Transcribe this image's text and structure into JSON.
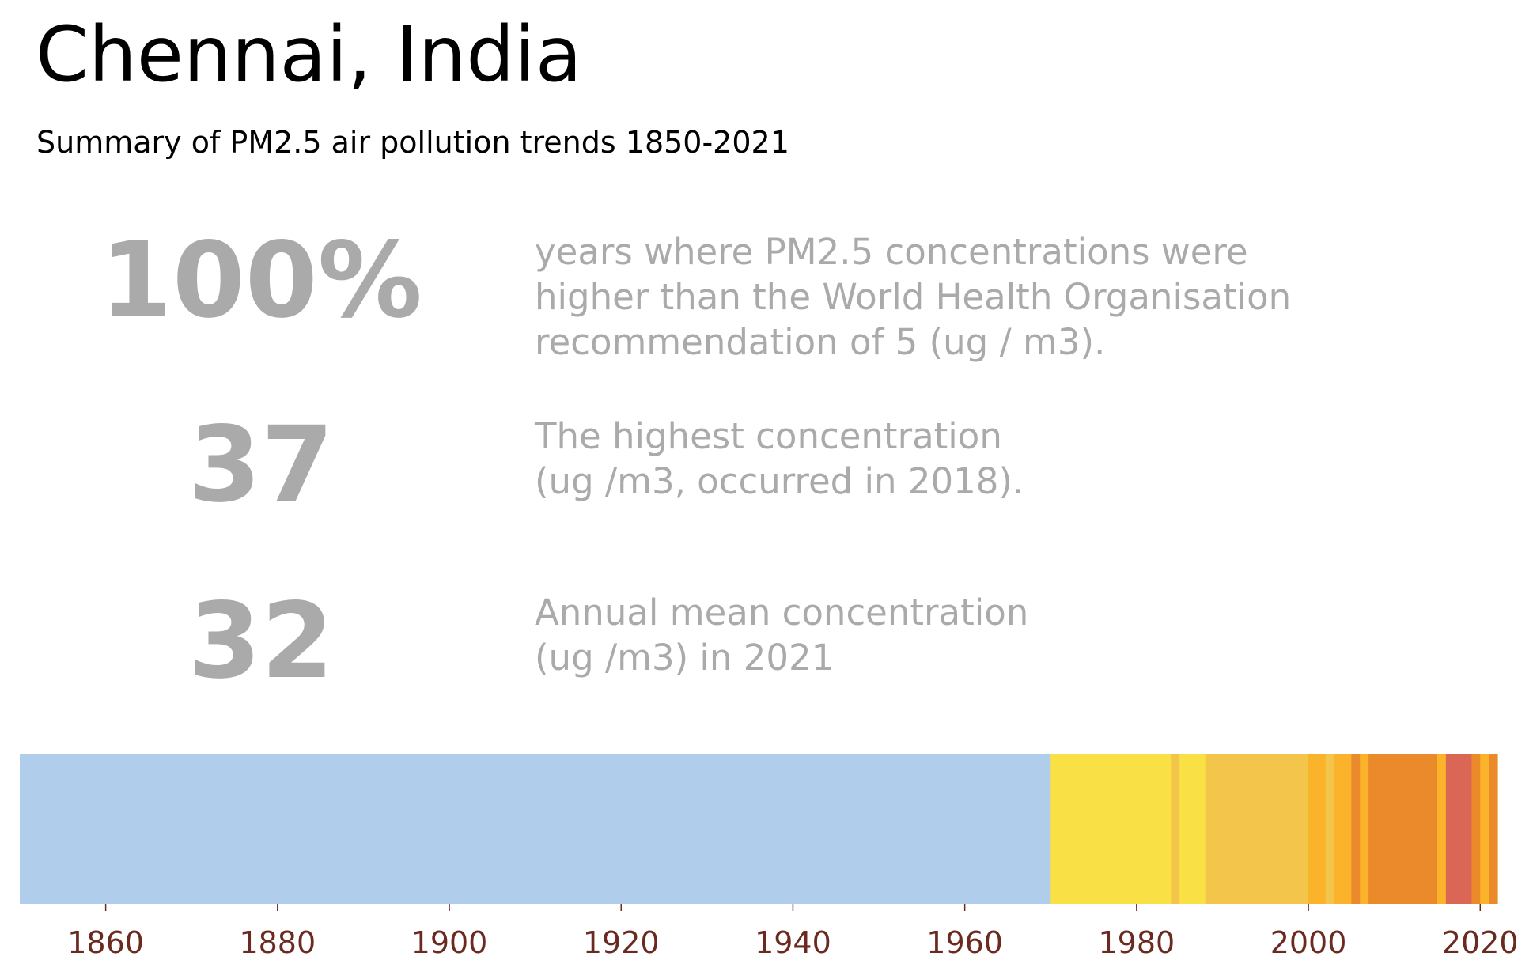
{
  "title": "Chennai, India",
  "subtitle": "Summary of PM2.5 air pollution trends 1850-2021",
  "stats": [
    {
      "value": "100%",
      "description": "years where PM2.5 concentrations were\nhigher than the World Health Organisation\nrecommendation of 5 (ug / m3)."
    },
    {
      "value": "37",
      "description": "The highest concentration\n(ug /m3, occurred in 2018)."
    },
    {
      "value": "32",
      "description": "Annual mean concentration\n(ug /m3) in 2021"
    }
  ],
  "colors": {
    "tick_label": "#6b2a1f",
    "no_data": "#b0ceec",
    "yellow": "#f8e045",
    "light_orange": "#f3c54b",
    "amber": "#fbb32c",
    "orange": "#ea8a2a",
    "red": "#da6655"
  },
  "chart_data": {
    "type": "heatmap",
    "x_range": [
      1850,
      2022
    ],
    "x_ticks": [
      1860,
      1880,
      1900,
      1920,
      1940,
      1960,
      1980,
      2000,
      2020
    ],
    "bands": [
      {
        "start": 1850,
        "end": 1970,
        "color": "#b0ceec"
      },
      {
        "start": 1970,
        "end": 1984,
        "color": "#f8e045"
      },
      {
        "start": 1984,
        "end": 1985,
        "color": "#f3c54b"
      },
      {
        "start": 1985,
        "end": 1988,
        "color": "#f8e045"
      },
      {
        "start": 1988,
        "end": 2000,
        "color": "#f3c54b"
      },
      {
        "start": 2000,
        "end": 2002,
        "color": "#fbb32c"
      },
      {
        "start": 2002,
        "end": 2003,
        "color": "#f3c54b"
      },
      {
        "start": 2003,
        "end": 2005,
        "color": "#fbb32c"
      },
      {
        "start": 2005,
        "end": 2006,
        "color": "#ea8a2a"
      },
      {
        "start": 2006,
        "end": 2007,
        "color": "#fbb32c"
      },
      {
        "start": 2007,
        "end": 2015,
        "color": "#ea8a2a"
      },
      {
        "start": 2015,
        "end": 2016,
        "color": "#fbb32c"
      },
      {
        "start": 2016,
        "end": 2019,
        "color": "#da6655"
      },
      {
        "start": 2019,
        "end": 2020,
        "color": "#ea8a2a"
      },
      {
        "start": 2020,
        "end": 2021,
        "color": "#fbb32c"
      },
      {
        "start": 2021,
        "end": 2022,
        "color": "#ea8a2a"
      }
    ]
  }
}
